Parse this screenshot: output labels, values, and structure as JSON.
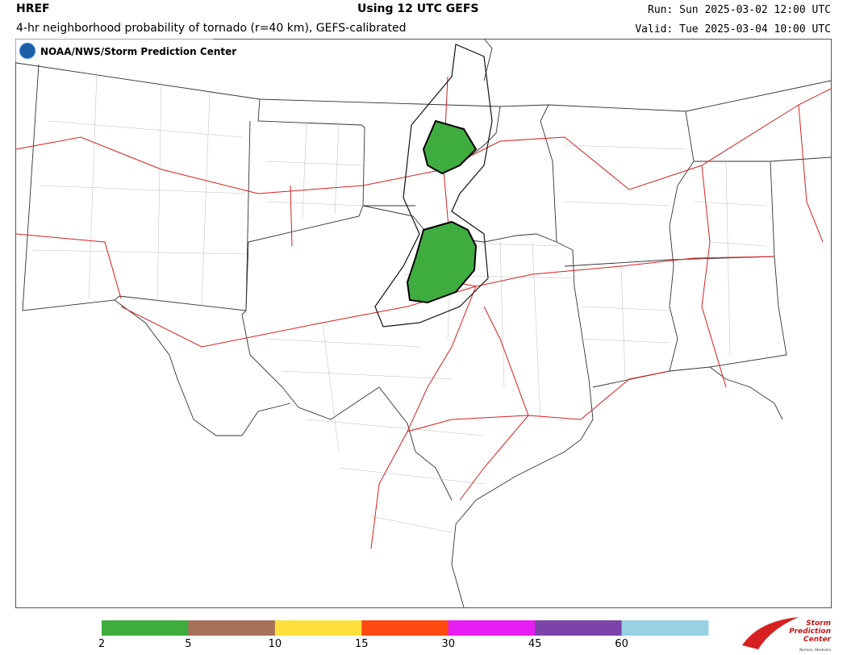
{
  "header": {
    "model": "HREF",
    "subtitle": "4-hr neighborhood probability of tornado (r=40 km), GEFS-calibrated",
    "center": "Using 12 UTC GEFS",
    "run": "Run: Sun 2025-03-02 12:00 UTC",
    "valid": "Valid: Tue 2025-03-04 10:00 UTC"
  },
  "badge": "NOAA/NWS/Storm Prediction Center",
  "legend": {
    "ticks": [
      2,
      5,
      10,
      15,
      30,
      45,
      60
    ],
    "colors": [
      "#3fac3f",
      "#a8705a",
      "#fde03c",
      "#fd4a10",
      "#e71ef2",
      "#7c44aa",
      "#98d1e3"
    ]
  },
  "logo": {
    "lines": [
      "Storm",
      "Prediction",
      "Center"
    ],
    "place": "Norman, Oklahoma"
  }
}
